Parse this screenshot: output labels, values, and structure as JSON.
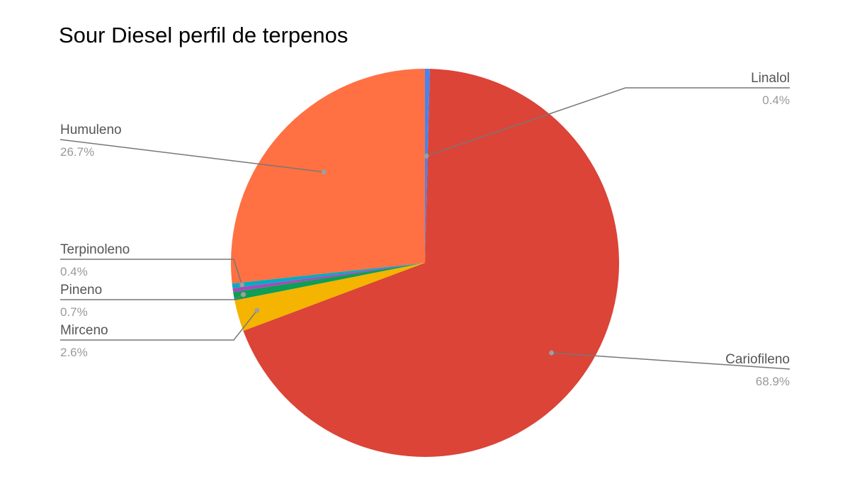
{
  "chart_data": {
    "type": "pie",
    "title": "Sour Diesel perfil de terpenos",
    "start_angle": "12 o'clock",
    "direction": "clockwise",
    "slices": [
      {
        "name": "Linalol",
        "value": 0.4,
        "label": "0.4%",
        "color": "#4285f4"
      },
      {
        "name": "Cariofileno",
        "value": 68.9,
        "label": "68.9%",
        "color": "#db4437"
      },
      {
        "name": "Mirceno",
        "value": 2.6,
        "label": "2.6%",
        "color": "#f4b400"
      },
      {
        "name": "Pineno",
        "value": 0.7,
        "label": "0.7%",
        "color": "#0f9d58"
      },
      {
        "name": "",
        "value": 0.3,
        "label": "",
        "color": "#ab47bc"
      },
      {
        "name": "Terpinoleno",
        "value": 0.4,
        "label": "0.4%",
        "color": "#00acc1"
      },
      {
        "name": "Humuleno",
        "value": 26.7,
        "label": "26.7%",
        "color": "#ff7043"
      }
    ]
  }
}
